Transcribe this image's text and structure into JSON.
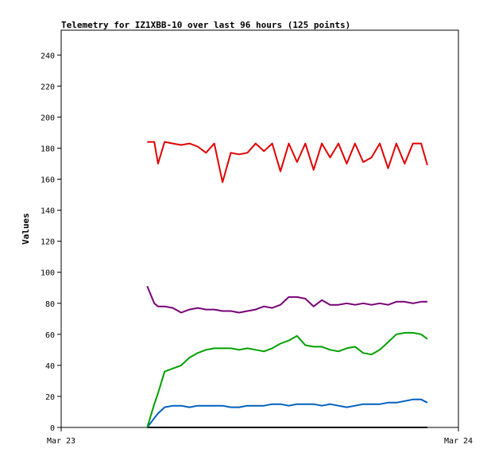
{
  "chart_data": {
    "type": "line",
    "title": "Telemetry for IZ1XBB-10 over last 96 hours (125 points)",
    "xlabel": "",
    "ylabel": "Values",
    "ylim": [
      0,
      256
    ],
    "yticks": [
      0,
      20,
      40,
      60,
      80,
      100,
      120,
      140,
      160,
      180,
      200,
      220,
      240
    ],
    "xticks": [
      "Mar 23",
      "Mar 24"
    ],
    "xlim": [
      0,
      96
    ],
    "grid": false,
    "legend": "none",
    "x": [
      20.8,
      22.5,
      23.4,
      25.0,
      27.0,
      29.0,
      31.0,
      33.0,
      35.0,
      37.0,
      39.0,
      41.0,
      43.0,
      45.0,
      47.0,
      49.0,
      51.0,
      53.0,
      55.0,
      57.0,
      59.0,
      61.0,
      63.0,
      65.0,
      67.0,
      69.0,
      71.0,
      73.0,
      75.0,
      77.0,
      79.0,
      81.0,
      83.0,
      85.0,
      87.0,
      88.5
    ],
    "series": [
      {
        "color": "#e00000",
        "values": [
          184,
          184,
          170,
          184,
          183,
          182,
          183,
          181,
          177,
          183,
          158,
          177,
          176,
          177,
          183,
          178,
          183,
          165,
          183,
          171,
          183,
          166,
          183,
          174,
          183,
          170,
          183,
          171,
          174,
          183,
          167,
          183,
          170,
          183,
          183,
          169
        ]
      },
      {
        "color": "#770077",
        "values": [
          91,
          80,
          78,
          78,
          77,
          74,
          76,
          77,
          76,
          76,
          75,
          75,
          74,
          75,
          76,
          78,
          77,
          79,
          84,
          84,
          83,
          78,
          82,
          79,
          79,
          80,
          79,
          80,
          79,
          80,
          79,
          81,
          81,
          80,
          81,
          81
        ]
      },
      {
        "color": "#00a000",
        "values": [
          0,
          15,
          22,
          36,
          38,
          40,
          45,
          48,
          50,
          51,
          51,
          51,
          50,
          51,
          50,
          49,
          51,
          54,
          56,
          59,
          53,
          52,
          52,
          50,
          49,
          51,
          52,
          48,
          47,
          50,
          55,
          60,
          61,
          61,
          60,
          57
        ]
      },
      {
        "color": "#0060c0",
        "values": [
          0,
          6,
          9,
          13,
          14,
          14,
          13,
          14,
          14,
          14,
          14,
          13,
          13,
          14,
          14,
          14,
          15,
          15,
          14,
          15,
          15,
          15,
          14,
          15,
          14,
          13,
          14,
          15,
          15,
          15,
          16,
          16,
          17,
          18,
          18,
          16
        ]
      },
      {
        "color": "#000000",
        "values": [
          0,
          0,
          0,
          0,
          0,
          0,
          0,
          0,
          0,
          0,
          0,
          0,
          0,
          0,
          0,
          0,
          0,
          0,
          0,
          0,
          0,
          0,
          0,
          0,
          0,
          0,
          0,
          0,
          0,
          0,
          0,
          0,
          0,
          0,
          0,
          0
        ]
      }
    ]
  }
}
